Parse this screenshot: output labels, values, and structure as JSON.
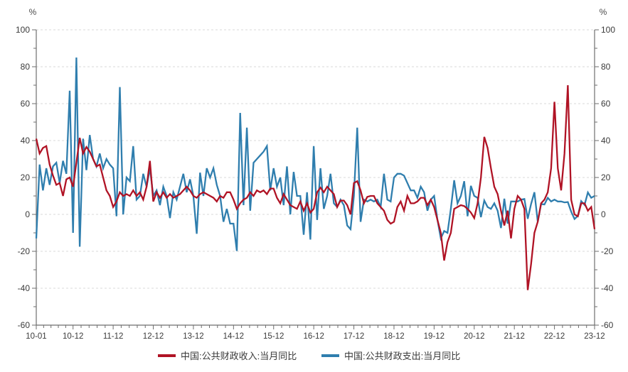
{
  "figure": {
    "unit_left": "%",
    "unit_right": "%"
  },
  "legend": {
    "position": "bottom-center",
    "items": [
      {
        "label": "中国:公共财政收入:当月同比",
        "color": "#b01325"
      },
      {
        "label": "中国:公共财政支出:当月同比",
        "color": "#2f7eae"
      }
    ]
  },
  "chart_data": {
    "type": "line",
    "title": "",
    "x_unit": "month",
    "x_range": [
      "2010-01",
      "2023-12"
    ],
    "n_points": 168,
    "ylim": [
      -60,
      100
    ],
    "y_axis_unit": "%",
    "y_ticks": [
      100,
      80,
      60,
      40,
      20,
      0,
      -20,
      -40,
      -60
    ],
    "y_minor_step": 10,
    "grid": "horizontal-dashed",
    "x_tick_labels": [
      "10-01",
      "10-12",
      "11-12",
      "12-12",
      "13-12",
      "14-12",
      "15-12",
      "16-12",
      "17-12",
      "18-12",
      "19-12",
      "20-12",
      "21-12",
      "22-12",
      "23-12"
    ],
    "x_tick_month_index": [
      0,
      11,
      23,
      35,
      47,
      59,
      71,
      83,
      95,
      107,
      119,
      131,
      143,
      155,
      167
    ],
    "x_minor_per_interval": 4,
    "series": [
      {
        "name": "中国:公共财政收入:当月同比",
        "color": "#b01325",
        "values": [
          41,
          33,
          36,
          37,
          27,
          21,
          16,
          17,
          10,
          19,
          20,
          15,
          28,
          41.5,
          33,
          36.5,
          34,
          30,
          26,
          27,
          20,
          13,
          10,
          4,
          7,
          12,
          10,
          11,
          10,
          13,
          10,
          12,
          8,
          15,
          29,
          7,
          12,
          9,
          12,
          9,
          11,
          9,
          10,
          11,
          13,
          15,
          13,
          10,
          9,
          11,
          12,
          11,
          10,
          9,
          7,
          10,
          9,
          12,
          12,
          8,
          3,
          6,
          8,
          9,
          12,
          10,
          13,
          12,
          13,
          11,
          14,
          14,
          9,
          6,
          11,
          8,
          5,
          4,
          3,
          7,
          2,
          6,
          1,
          3,
          12,
          14.5,
          12,
          15,
          13,
          11,
          4,
          7.5,
          7.5,
          5,
          0,
          17,
          18,
          13,
          6,
          9.5,
          10,
          10,
          6,
          4,
          2,
          -3,
          -5,
          -4,
          4,
          7,
          2,
          10,
          6,
          6,
          7,
          9,
          9,
          5,
          8,
          4,
          -3,
          -10,
          -25,
          -15,
          -10,
          3,
          4,
          5,
          4.5,
          3,
          1,
          -2,
          6,
          20,
          42,
          36,
          25,
          15,
          11,
          2,
          -6,
          2,
          -13,
          3,
          10,
          8,
          3,
          -41,
          -27,
          -10,
          -4,
          6,
          8,
          12,
          25,
          61,
          25,
          13,
          33,
          70,
          8,
          0,
          -1,
          6,
          6,
          2,
          4,
          -8
        ]
      },
      {
        "name": "中国:公共财政支出:当月同比",
        "color": "#2f7eae",
        "values": [
          -13,
          27,
          13,
          25,
          16,
          26,
          28,
          17,
          29,
          22,
          67,
          -10,
          85,
          -17.5,
          41,
          24,
          43,
          30,
          26,
          33,
          25,
          30,
          27,
          25,
          -1,
          69,
          0,
          20,
          18,
          37,
          8,
          10,
          22,
          15,
          25,
          10,
          13,
          5,
          15,
          10,
          -2,
          12,
          8,
          15,
          22,
          12,
          19,
          10,
          -10.5,
          22.6,
          10,
          25,
          20,
          25,
          16,
          10,
          -4,
          3,
          -5,
          -5,
          -19.8,
          55,
          5,
          47,
          2,
          28,
          30,
          32,
          34,
          37,
          13,
          25,
          15,
          20,
          5,
          26,
          0,
          23,
          10,
          10,
          -11,
          12,
          -13.6,
          37,
          -3,
          25,
          3,
          10,
          22,
          6,
          4,
          8,
          5,
          -6,
          -8,
          10,
          47,
          -4,
          8,
          7,
          8,
          7,
          8,
          4,
          22,
          8,
          7,
          20,
          22,
          22,
          21,
          17,
          13,
          13,
          9,
          15,
          12,
          2,
          8,
          10,
          -3,
          -13,
          -9,
          -10,
          3,
          18.5,
          6,
          10,
          18,
          -1,
          15.5,
          10,
          9,
          -1.5,
          7.5,
          4,
          3,
          6,
          2,
          -7.4,
          8.5,
          -5,
          7,
          7,
          7,
          8,
          8.4,
          -2.4,
          5.6,
          12,
          -4,
          5.6,
          5.4,
          9,
          7,
          8,
          7,
          7,
          6.5,
          6.7,
          1.5,
          -2.5,
          -0.8,
          7.2,
          5.2,
          11.9,
          9,
          10
        ]
      }
    ]
  }
}
